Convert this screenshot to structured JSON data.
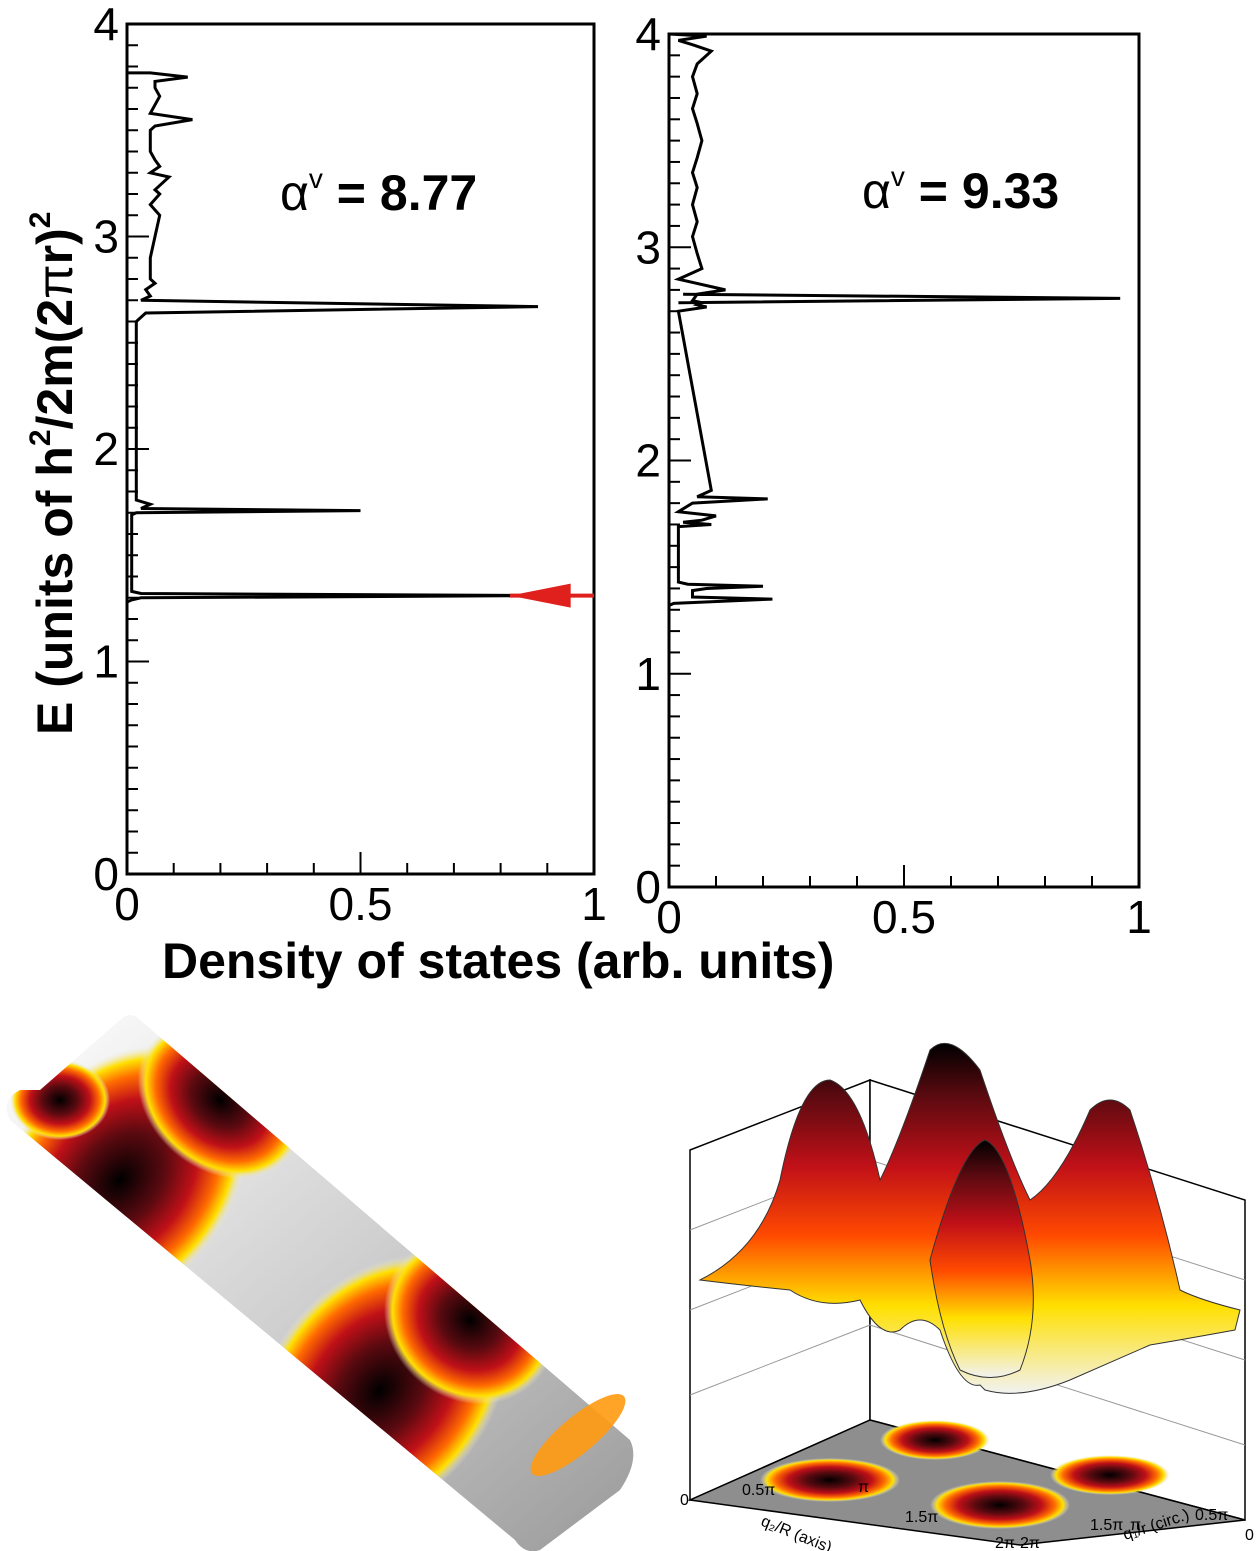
{
  "figure": {
    "ylabel_main": "E (units of h",
    "ylabel_sup1": "2",
    "ylabel_mid": "/2m(2",
    "ylabel_pi": "π",
    "ylabel_end": "r)",
    "ylabel_sup2": "2",
    "xlabel": "Density of states  (arb. units)"
  },
  "chart_data": [
    {
      "type": "line",
      "panel": "left",
      "annotation": {
        "symbol": "α",
        "sup": "v",
        "value": " = 8.77"
      },
      "xlim": [
        0,
        1
      ],
      "ylim": [
        0,
        4
      ],
      "xticks": [
        "0",
        "0.5",
        "1"
      ],
      "yticks": [
        "0",
        "1",
        "2",
        "3",
        "4"
      ],
      "arrow_energy": 1.31,
      "arrow_color": "#e0201c",
      "series": [
        {
          "x": [
            0,
            0.01,
            0.03,
            0.9,
            0.03,
            0.01,
            0.01,
            0.02,
            0.5,
            0.03,
            0.05,
            0.02,
            0.02,
            0.04,
            0.88,
            0.03,
            0.05,
            0.04,
            0.06,
            0.05,
            0.05,
            0.06,
            0.07,
            0.05,
            0.07,
            0.06,
            0.09,
            0.05,
            0.07,
            0.06,
            0.05,
            0.05,
            0.05,
            0.06,
            0.14,
            0.05,
            0.06,
            0.07,
            0.06,
            0.06,
            0.13,
            0.05,
            0
          ],
          "y": [
            1.28,
            1.29,
            1.3,
            1.31,
            1.32,
            1.33,
            1.69,
            1.7,
            1.71,
            1.72,
            1.74,
            1.76,
            2.6,
            2.64,
            2.67,
            2.7,
            2.72,
            2.75,
            2.78,
            2.8,
            2.9,
            3.0,
            3.1,
            3.15,
            3.2,
            3.22,
            3.28,
            3.3,
            3.33,
            3.36,
            3.4,
            3.45,
            3.5,
            3.52,
            3.55,
            3.58,
            3.62,
            3.66,
            3.7,
            3.73,
            3.75,
            3.77,
            3.77
          ]
        }
      ]
    },
    {
      "type": "line",
      "panel": "right",
      "annotation": {
        "symbol": "α",
        "sup": "v",
        "value": " = 9.33"
      },
      "xlim": [
        0,
        1
      ],
      "ylim": [
        0,
        4
      ],
      "xticks": [
        "0",
        "0.5",
        "1"
      ],
      "yticks": [
        "0",
        "1",
        "2",
        "3",
        "4"
      ],
      "series": [
        {
          "x": [
            0,
            0.01,
            0.22,
            0.05,
            0.05,
            0.08,
            0.2,
            0.04,
            0.02,
            0.02,
            0.09,
            0.03,
            0.07,
            0.1,
            0.02,
            0.05,
            0.21,
            0.06,
            0.08,
            0.09,
            0.02,
            0.08,
            0.06,
            0.07,
            0.05,
            0.06,
            0.12,
            0.02,
            0.07,
            0.06,
            0.05,
            0.06,
            0.05,
            0.06,
            0.05,
            0.06,
            0.07,
            0.06,
            0.05,
            0.06,
            0.05,
            0.06,
            0.09,
            0.05,
            0.02,
            0.08,
            0
          ],
          "y": [
            1.32,
            1.33,
            1.35,
            1.36,
            1.39,
            1.4,
            1.41,
            1.42,
            1.43,
            1.69,
            1.7,
            1.71,
            1.72,
            1.74,
            1.76,
            1.8,
            1.82,
            1.83,
            1.85,
            1.86,
            2.7,
            2.72,
            2.73,
            2.74,
            2.75,
            2.78,
            2.8,
            2.85,
            2.9,
            2.97,
            3.05,
            3.12,
            3.2,
            3.28,
            3.35,
            3.42,
            3.5,
            3.58,
            3.65,
            3.72,
            3.8,
            3.86,
            3.92,
            3.95,
            3.97,
            3.99,
            4.0
          ]
        }
      ],
      "spike": {
        "energy": 2.76,
        "value": 0.96
      }
    }
  ],
  "surface_plot": {
    "x_axis_label": "q₂/R (axis)",
    "y_axis_label": "q₁/r (circ.)",
    "x_ticks": [
      "0",
      "0.5π",
      "π",
      "1.5π",
      "2π"
    ],
    "y_ticks": [
      "0",
      "0.5π",
      "π",
      "1.5π",
      "2π"
    ]
  }
}
